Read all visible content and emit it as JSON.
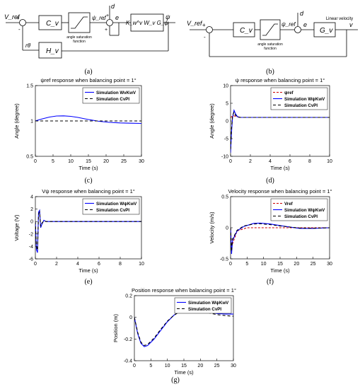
{
  "diagrams": {
    "a": {
      "caption": "(a)",
      "input": "V_ref",
      "sum_signs": [
        "+",
        "-"
      ],
      "controller": "C_v",
      "saturation_label": [
        "angle saturation",
        "function"
      ],
      "psi_ref": "ψ_ref",
      "disturbance": "d",
      "error": "e",
      "sum2_signs": [
        "+",
        "-",
        "+"
      ],
      "plant": "K_w^v W_v G_ψ",
      "output": "ψ",
      "feedback": "H_v",
      "feedback_signal": "rθ̇"
    },
    "b": {
      "caption": "(b)",
      "input": "V_ref",
      "sum_signs": [
        "+",
        "-"
      ],
      "controller": "C_v",
      "saturation_label": [
        "angle saturation",
        "function"
      ],
      "psi_ref": "ψ_ref",
      "disturbance": "d",
      "error": "e",
      "plant": "G_v",
      "output": "v",
      "output_label": "Linear velocity"
    }
  },
  "chart_data": [
    {
      "id": "c",
      "type": "line",
      "caption": "(c)",
      "title": "ψref response when balancing point = 1°",
      "xlabel": "Time (s)",
      "ylabel": "Angle (degree)",
      "xlim": [
        0,
        30
      ],
      "ylim": [
        0.5,
        1.5
      ],
      "xticks": [
        0,
        5,
        10,
        15,
        20,
        25,
        30
      ],
      "yticks": [
        0.5,
        1,
        1.5
      ],
      "legend": "top-right",
      "grid": false,
      "series": [
        {
          "name": "Simulation WvKwV",
          "color": "#0000ff",
          "dash": "",
          "x": [
            0,
            2,
            4,
            6,
            8,
            10,
            12,
            15,
            18,
            21,
            24,
            27,
            30
          ],
          "y": [
            1.0,
            1.03,
            1.055,
            1.07,
            1.072,
            1.065,
            1.05,
            1.02,
            0.995,
            0.98,
            0.972,
            0.968,
            0.965
          ]
        },
        {
          "name": "Simulation CvPI",
          "color": "#000000",
          "dash": "4,3",
          "x": [
            0,
            30
          ],
          "y": [
            1.0,
            1.0
          ]
        }
      ]
    },
    {
      "id": "d",
      "type": "line",
      "caption": "(d)",
      "title": "ψ response when balancing point = 1°",
      "xlabel": "Time (s)",
      "ylabel": "Angle (degree)",
      "xlim": [
        0,
        10
      ],
      "ylim": [
        -10,
        10
      ],
      "xticks": [
        0,
        2,
        4,
        6,
        8,
        10
      ],
      "yticks": [
        -10,
        -5,
        0,
        5,
        10
      ],
      "legend": "top-right",
      "grid": false,
      "series": [
        {
          "name": "ψref",
          "color": "#cc0000",
          "dash": "3,2",
          "x": [
            0,
            0.3,
            0.5,
            1,
            2,
            10
          ],
          "y": [
            1,
            1.5,
            1.3,
            1,
            1,
            1
          ]
        },
        {
          "name": "Simulation WψKwV",
          "color": "#0000ff",
          "dash": "",
          "x": [
            0,
            0.1,
            0.2,
            0.35,
            0.5,
            0.7,
            1,
            1.5,
            2,
            4,
            10
          ],
          "y": [
            -9,
            -3,
            1,
            3,
            2,
            1.2,
            1.0,
            1,
            1,
            1,
            1
          ]
        },
        {
          "name": "Simulation CvPI",
          "color": "#000000",
          "dash": "4,3",
          "x": [
            0,
            0.1,
            0.2,
            0.35,
            0.5,
            0.7,
            1,
            2,
            10
          ],
          "y": [
            -8,
            -2,
            1.5,
            2.5,
            1.6,
            1.1,
            1,
            1,
            1
          ]
        }
      ]
    },
    {
      "id": "e",
      "type": "line",
      "caption": "(e)",
      "title": "Vψ response when balancing point = 1°",
      "xlabel": "Time (s)",
      "ylabel": "Voltage (V)",
      "xlim": [
        0,
        10
      ],
      "ylim": [
        -6,
        4
      ],
      "xticks": [
        0,
        2,
        4,
        6,
        8,
        10
      ],
      "yticks": [
        -6,
        -4,
        -2,
        0,
        2,
        4
      ],
      "legend": "top-right",
      "grid": false,
      "series": [
        {
          "name": "Simulation WψKwV",
          "color": "#0000ff",
          "dash": "",
          "x": [
            0,
            0.1,
            0.2,
            0.3,
            0.4,
            0.5,
            0.6,
            0.8,
            1,
            2,
            10
          ],
          "y": [
            0,
            -4.5,
            -5,
            1.5,
            1.8,
            -1,
            -0.5,
            0.2,
            0,
            0,
            0
          ]
        },
        {
          "name": "Simulation CvPI",
          "color": "#000000",
          "dash": "4,3",
          "x": [
            0,
            0.1,
            0.2,
            0.3,
            0.4,
            0.5,
            0.6,
            0.8,
            1,
            2,
            10
          ],
          "y": [
            0,
            -4,
            -4.6,
            1.2,
            1.5,
            -0.8,
            -0.3,
            0.1,
            0,
            0,
            0
          ]
        }
      ]
    },
    {
      "id": "f",
      "type": "line",
      "caption": "(f)",
      "title": "Velocity response when balancing point = 1°",
      "xlabel": "Time (s)",
      "ylabel": "Velocity (m/s)",
      "xlim": [
        0,
        30
      ],
      "ylim": [
        -0.5,
        0.5
      ],
      "xticks": [
        0,
        5,
        10,
        15,
        20,
        25,
        30
      ],
      "yticks": [
        -0.5,
        0,
        0.5
      ],
      "legend": "top-right",
      "grid": false,
      "series": [
        {
          "name": "Vref",
          "color": "#cc0000",
          "dash": "3,2",
          "x": [
            0,
            0.3,
            2,
            5,
            10,
            30
          ],
          "y": [
            0,
            -0.3,
            -0.05,
            0,
            0,
            0
          ]
        },
        {
          "name": "Simulation WψKwV",
          "color": "#0000ff",
          "dash": "",
          "x": [
            0,
            0.3,
            0.6,
            2,
            4,
            7,
            9,
            12,
            15,
            18,
            21,
            25,
            30
          ],
          "y": [
            0,
            -0.42,
            -0.2,
            -0.05,
            0.02,
            0.07,
            0.075,
            0.06,
            0.035,
            0.01,
            -0.01,
            -0.01,
            0
          ]
        },
        {
          "name": "Simulation CvPI",
          "color": "#000000",
          "dash": "4,3",
          "x": [
            0,
            0.3,
            0.6,
            2,
            4,
            7,
            9,
            12,
            15,
            18,
            21,
            25,
            30
          ],
          "y": [
            0,
            -0.38,
            -0.18,
            -0.04,
            0.03,
            0.06,
            0.065,
            0.05,
            0.03,
            0.01,
            -0.005,
            -0.008,
            0
          ]
        }
      ]
    },
    {
      "id": "g",
      "type": "line",
      "caption": "(g)",
      "title": "Position response when balancing point = 1°",
      "xlabel": "Time (s)",
      "ylabel": "Position (m)",
      "xlim": [
        0,
        30
      ],
      "ylim": [
        -0.4,
        0.2
      ],
      "xticks": [
        0,
        5,
        10,
        15,
        20,
        25,
        30
      ],
      "yticks": [
        -0.4,
        -0.2,
        0,
        0.2
      ],
      "legend": "top-right",
      "grid": false,
      "series": [
        {
          "name": "Simulation WψKwV",
          "color": "#0000ff",
          "dash": "",
          "x": [
            0,
            1,
            2,
            3,
            4,
            6,
            8,
            10,
            12,
            14,
            16,
            18,
            20,
            22,
            25,
            28,
            30
          ],
          "y": [
            0,
            -0.15,
            -0.24,
            -0.27,
            -0.26,
            -0.2,
            -0.12,
            -0.04,
            0.02,
            0.06,
            0.075,
            0.075,
            0.065,
            0.05,
            0.035,
            0.03,
            0.03
          ]
        },
        {
          "name": "Simulation CvPI",
          "color": "#000000",
          "dash": "4,3",
          "x": [
            0,
            1,
            2,
            3,
            4,
            6,
            8,
            10,
            12,
            14,
            16,
            18,
            20,
            22,
            25,
            28,
            30
          ],
          "y": [
            0,
            -0.14,
            -0.23,
            -0.26,
            -0.25,
            -0.19,
            -0.11,
            -0.035,
            0.02,
            0.055,
            0.07,
            0.07,
            0.06,
            0.045,
            0.025,
            0.015,
            0.01
          ]
        }
      ]
    }
  ]
}
